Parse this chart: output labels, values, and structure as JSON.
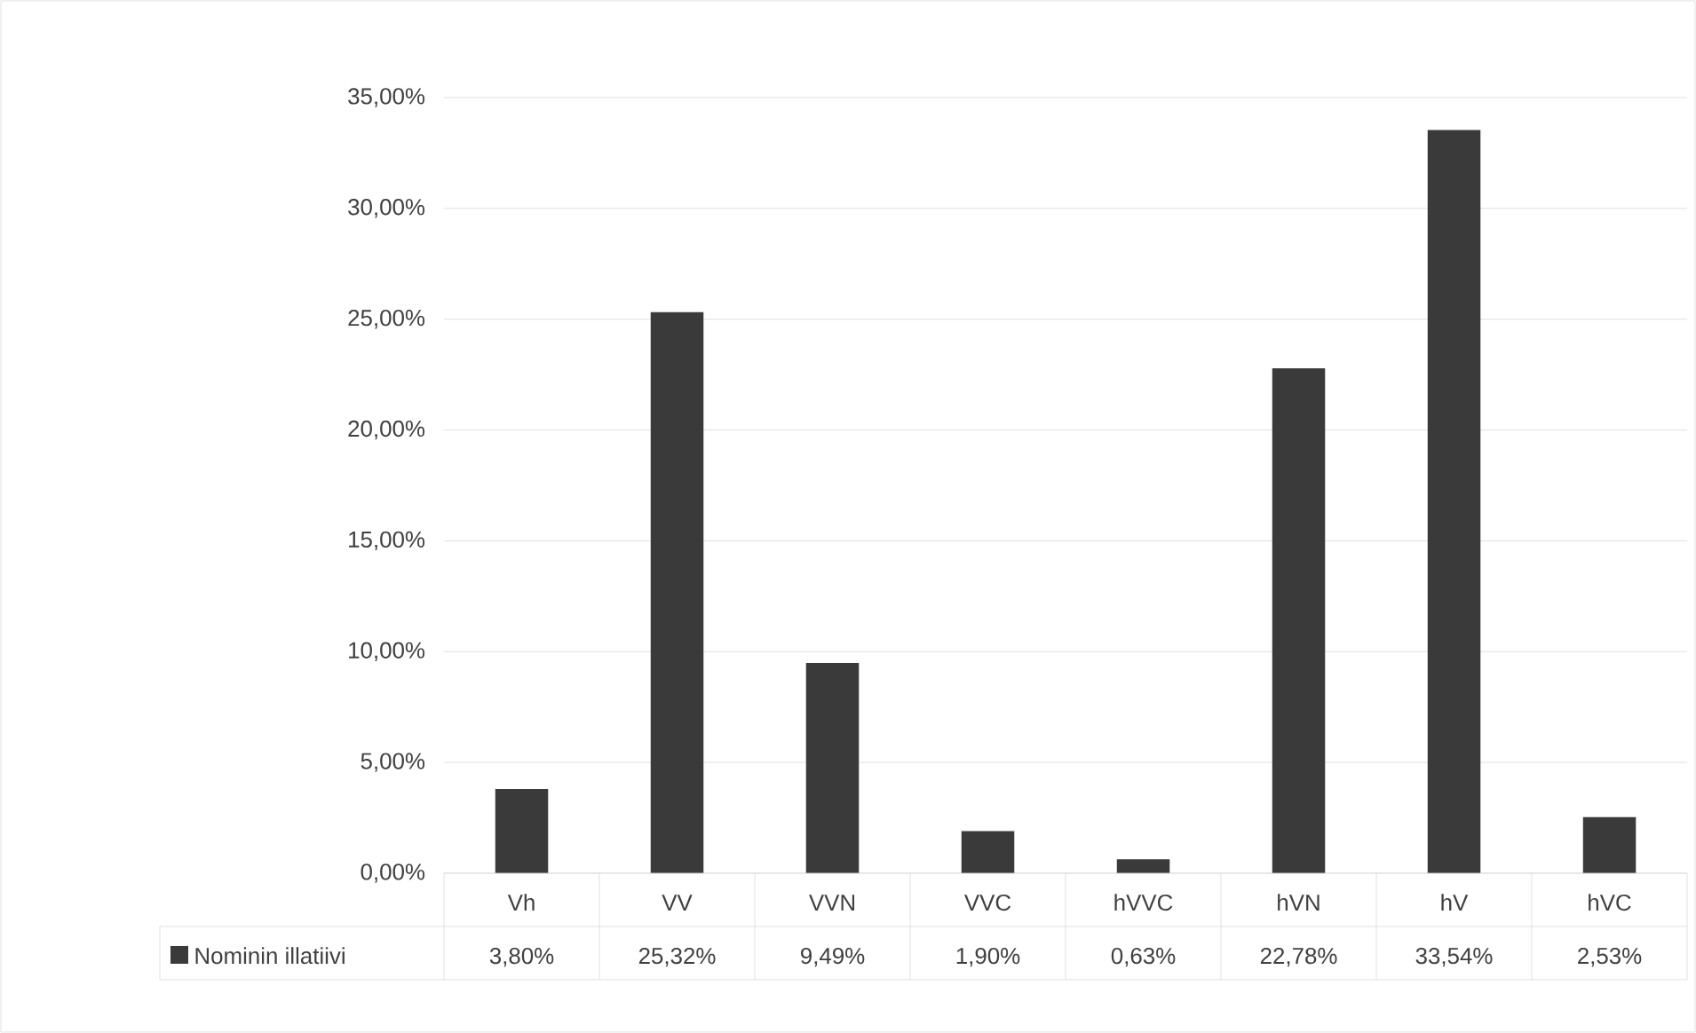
{
  "chart_data": {
    "type": "bar",
    "categories": [
      "Vh",
      "VV",
      "VVN",
      "VVC",
      "hVVC",
      "hVN",
      "hV",
      "hVC"
    ],
    "series": [
      {
        "name": "Nominin illatiivi",
        "color": "#3a3a3a",
        "values": [
          3.8,
          25.32,
          9.49,
          1.9,
          0.63,
          22.78,
          33.54,
          2.53
        ],
        "value_labels": [
          "3,80%",
          "25,32%",
          "9,49%",
          "1,90%",
          "0,63%",
          "22,78%",
          "33,54%",
          "2,53%"
        ]
      }
    ],
    "ylim": [
      0,
      35
    ],
    "yticks": [
      {
        "value": 0,
        "label": "0,00%"
      },
      {
        "value": 5,
        "label": "5,00%"
      },
      {
        "value": 10,
        "label": "10,00%"
      },
      {
        "value": 15,
        "label": "15,00%"
      },
      {
        "value": 20,
        "label": "20,00%"
      },
      {
        "value": 25,
        "label": "25,00%"
      },
      {
        "value": 30,
        "label": "30,00%"
      },
      {
        "value": 35,
        "label": "35,00%"
      }
    ],
    "grid": "y",
    "legend": "bottom"
  }
}
